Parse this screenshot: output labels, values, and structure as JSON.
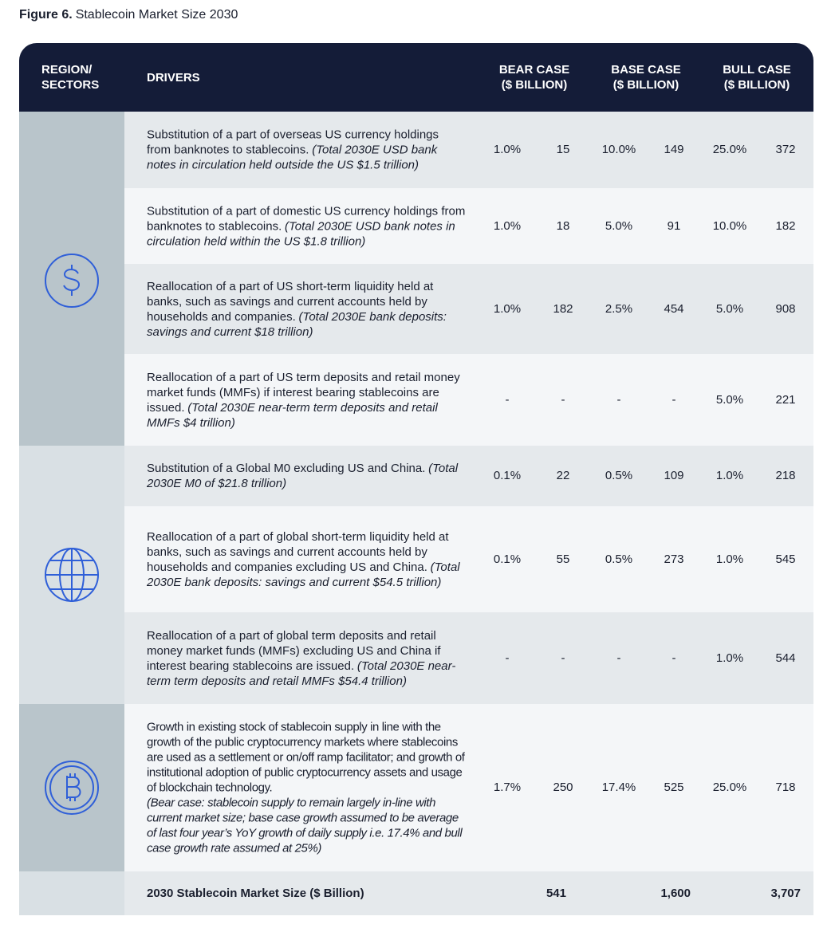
{
  "figure": {
    "label": "Figure 6.",
    "title": "Stablecoin Market Size 2030"
  },
  "header": {
    "region": [
      "REGION/",
      "SECTORS"
    ],
    "drivers": "DRIVERS",
    "bear": [
      "BEAR CASE",
      "($ BILLION)"
    ],
    "base": [
      "BASE CASE",
      "($ BILLION)"
    ],
    "bull": [
      "BULL CASE",
      "($ BILLION)"
    ]
  },
  "rows": [
    {
      "text": "Substitution of a part of overseas US currency holdings from banknotes to stablecoins.",
      "note": "(Total 2030E USD bank notes in circulation held outside the US $1.5 trillion)",
      "values": [
        "1.0%",
        "15",
        "10.0%",
        "149",
        "25.0%",
        "372"
      ]
    },
    {
      "text": "Substitution of a part of domestic US currency holdings from banknotes to stablecoins.",
      "note": "(Total 2030E USD bank notes in circulation held within the US $1.8 trillion)",
      "values": [
        "1.0%",
        "18",
        "5.0%",
        "91",
        "10.0%",
        "182"
      ]
    },
    {
      "text": "Reallocation of a part of US short-term liquidity held at banks, such as savings and current accounts held by households and companies.",
      "note": "(Total 2030E bank deposits: savings and current $18 trillion)",
      "values": [
        "1.0%",
        "182",
        "2.5%",
        "454",
        "5.0%",
        "908"
      ]
    },
    {
      "text": "Reallocation of a part of US term deposits and retail money market funds (MMFs) if interest bearing stablecoins are issued.",
      "note": "(Total 2030E near-term term deposits and retail MMFs $4 trillion)",
      "values": [
        "-",
        "-",
        "-",
        "-",
        "5.0%",
        "221"
      ]
    },
    {
      "text": "Substitution of a Global M0 excluding US and China.",
      "note": "(Total 2030E M0 of $21.8 trillion)",
      "values": [
        "0.1%",
        "22",
        "0.5%",
        "109",
        "1.0%",
        "218"
      ]
    },
    {
      "text": "Reallocation of a part of global short-term liquidity held at banks, such as savings and current accounts held by households and companies excluding US and China.",
      "note": "(Total 2030E bank deposits: savings and current $54.5 trillion)",
      "values": [
        "0.1%",
        "55",
        "0.5%",
        "273",
        "1.0%",
        "545"
      ]
    },
    {
      "text": "Reallocation of a part of global term deposits and retail money market funds (MMFs) excluding US and China if interest bearing stablecoins are issued.",
      "note": "(Total 2030E near-term term deposits and retail MMFs $54.4 trillion)",
      "values": [
        "-",
        "-",
        "-",
        "-",
        "1.0%",
        "544"
      ]
    },
    {
      "text": "Growth in existing stock of stablecoin supply in line with the growth of the public cryptocurrency markets where stablecoins are used as a settlement or on/off ramp facilitator; and growth of institutional adoption of public cryptocurrency assets and usage of blockchain technology.",
      "note": "(Bear case: stablecoin supply to remain largely in-line with current market size; base case growth assumed to be average of last four year’s YoY growth of daily supply i.e. 17.4% and bull case growth rate assumed at 25%)",
      "values": [
        "1.7%",
        "250",
        "17.4%",
        "525",
        "25.0%",
        "718"
      ]
    }
  ],
  "total": {
    "label": "2030 Stablecoin Market Size ($ Billion)",
    "values": [
      "541",
      "1,600",
      "3,707"
    ]
  }
}
